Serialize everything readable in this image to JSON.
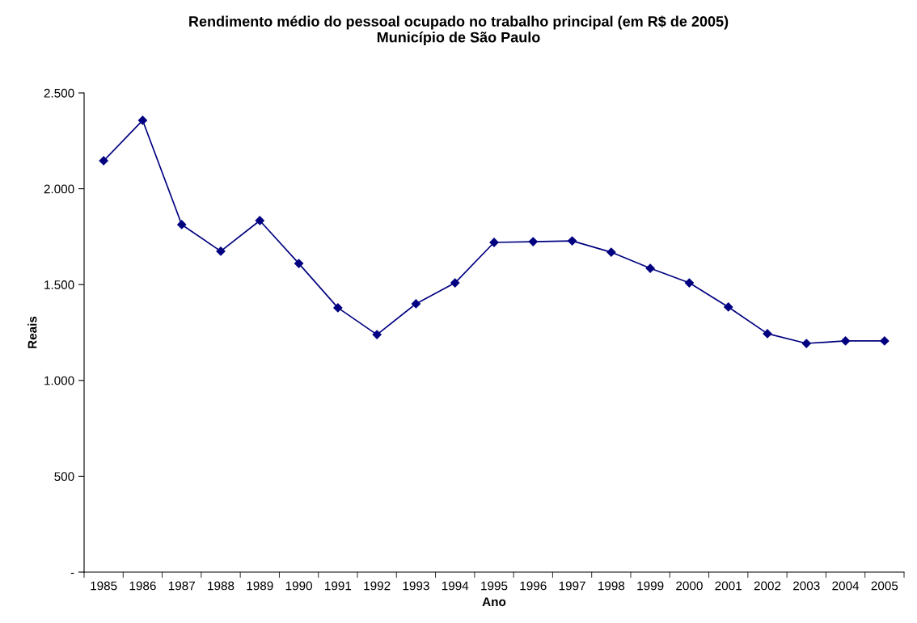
{
  "chart_data": {
    "type": "line",
    "title": "Rendimento médio do pessoal ocupado no trabalho principal (em R$ de 2005)\nMunicípio de São Paulo",
    "xlabel": "Ano",
    "ylabel": "Reais",
    "categories": [
      "1985",
      "1986",
      "1987",
      "1988",
      "1989",
      "1990",
      "1991",
      "1992",
      "1993",
      "1994",
      "1995",
      "1996",
      "1997",
      "1998",
      "1999",
      "2000",
      "2001",
      "2002",
      "2003",
      "2004",
      "2005"
    ],
    "series": [
      {
        "color": "#000080",
        "values": [
          2146,
          2357,
          1813,
          1674,
          1834,
          1610,
          1379,
          1239,
          1400,
          1509,
          1720,
          1724,
          1728,
          1669,
          1585,
          1509,
          1383,
          1244,
          1193,
          1206,
          1206
        ]
      }
    ],
    "ylim": [
      0,
      2500
    ],
    "yticks": [
      {
        "value": 0,
        "label": "-"
      },
      500,
      {
        "value": 1000,
        "label": "1.000"
      },
      {
        "value": 1500,
        "label": "1.500"
      },
      {
        "value": 2000,
        "label": "2.000"
      },
      {
        "value": 2500,
        "label": "2.500"
      }
    ],
    "grid": false,
    "legend": false,
    "marker": "diamond",
    "line_style": "solid"
  }
}
